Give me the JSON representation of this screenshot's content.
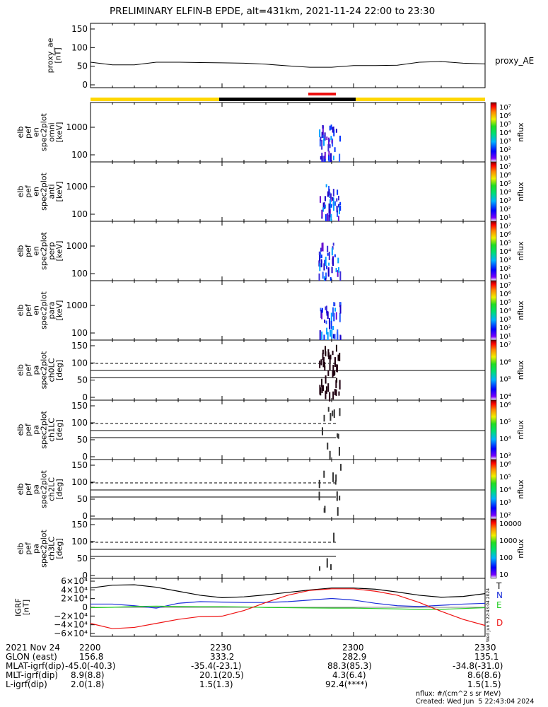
{
  "title": "PRELIMINARY ELFIN-B EPDE, alt=431km, 2021-11-24 22:00 to 23:30",
  "colors": {
    "black": "#000000",
    "yellow": "#ffd700",
    "red": "#ee1111",
    "blue": "#1c2fd9",
    "green": "#22cc22"
  },
  "panels": [
    {
      "name": "proxy-ae",
      "ylabel": [
        "proxy_ae",
        "[nT]"
      ],
      "ticks": [
        "150",
        "100",
        "50",
        "0"
      ],
      "right_label": "proxy_AE"
    },
    {
      "name": "omni",
      "ylabel": [
        "elb",
        "pef",
        "en",
        "spec2plot",
        "omni",
        "[keV]"
      ],
      "ticks": [
        "1000",
        "100"
      ],
      "colorbar_ticks": [
        "10⁷",
        "10⁶",
        "10⁵",
        "10⁴",
        "10³",
        "10²",
        "10¹"
      ],
      "colorbar_label": "nflux"
    },
    {
      "name": "anti",
      "ylabel": [
        "elb",
        "pef",
        "en",
        "spec2plot",
        "anti",
        "[keV]"
      ],
      "ticks": [
        "1000",
        "100"
      ],
      "colorbar_ticks": [
        "10⁷",
        "10⁶",
        "10⁵",
        "10⁴",
        "10³",
        "10²",
        "10¹"
      ],
      "colorbar_label": "nflux"
    },
    {
      "name": "perp",
      "ylabel": [
        "elb",
        "pef",
        "en",
        "spec2plot",
        "perp",
        "[keV]"
      ],
      "ticks": [
        "1000",
        "100"
      ],
      "colorbar_ticks": [
        "10⁷",
        "10⁶",
        "10⁵",
        "10⁴",
        "10³",
        "10²",
        "10¹"
      ],
      "colorbar_label": "nflux"
    },
    {
      "name": "para",
      "ylabel": [
        "elb",
        "pef",
        "en",
        "spec2plot",
        "para",
        "[keV]"
      ],
      "ticks": [
        "1000",
        "100"
      ],
      "colorbar_ticks": [
        "10⁷",
        "10⁶",
        "10⁵",
        "10⁴",
        "10³",
        "10²",
        "10¹"
      ],
      "colorbar_label": "nflux"
    },
    {
      "name": "ch0lc",
      "ylabel": [
        "elb",
        "pef",
        "pa",
        "spec2plot",
        "ch0LC",
        "[deg]"
      ],
      "ticks": [
        "150",
        "100",
        "50",
        "0"
      ],
      "colorbar_ticks": [
        "10⁷",
        "10⁶",
        "10⁵",
        "10⁴"
      ],
      "colorbar_label": "nflux"
    },
    {
      "name": "ch1lc",
      "ylabel": [
        "elb",
        "pef",
        "pa",
        "spec2plot",
        "ch1LC",
        "[deg]"
      ],
      "ticks": [
        "150",
        "100",
        "50",
        "0"
      ],
      "colorbar_ticks": [
        "10⁶",
        "10⁵",
        "10⁴",
        "10³"
      ],
      "colorbar_label": "nflux"
    },
    {
      "name": "ch2lc",
      "ylabel": [
        "elb",
        "pef",
        "pa",
        "spec2plot",
        "ch2LC",
        "[deg]"
      ],
      "ticks": [
        "150",
        "100",
        "50",
        "0"
      ],
      "colorbar_ticks": [
        "10⁶",
        "10⁵",
        "10⁴",
        "10³",
        "10²"
      ],
      "colorbar_label": "nflux"
    },
    {
      "name": "ch3lc",
      "ylabel": [
        "elb",
        "pef",
        "pa",
        "spec2plot",
        "ch3LC",
        "[deg]"
      ],
      "ticks": [
        "150",
        "100",
        "50",
        "0"
      ],
      "colorbar_ticks": [
        "10000",
        "1000",
        "100",
        "10"
      ],
      "colorbar_label": "nflux"
    },
    {
      "name": "igrf",
      "ylabel": [
        "IGRF",
        "[nT]"
      ],
      "ticks": [
        "6×10⁴",
        "4×10⁴",
        "2×10⁴",
        "0",
        "−2×10⁴",
        "−4×10⁴",
        "−6×10⁴"
      ],
      "legend": [
        "T",
        "N",
        "E",
        "D"
      ]
    }
  ],
  "time_axis": {
    "date": "2021 Nov 24",
    "ticks": [
      "2200",
      "2230",
      "2300",
      "2330"
    ],
    "rows": [
      {
        "label": "GLON (east)",
        "values": [
          "156.8",
          "333.2",
          "282.9",
          "135.1"
        ]
      },
      {
        "label": "MLAT-igrf(dip)",
        "values": [
          "-45.0(-40.3)",
          "-35.4(-23.1)",
          "88.3(85.3)",
          "-34.8(-31.0)"
        ]
      },
      {
        "label": "MLT-igrf(dip)",
        "values": [
          "8.9(8.8)",
          "20.1(20.5)",
          "4.3(6.4)",
          "8.6(8.6)"
        ]
      },
      {
        "label": "L-igrf(dip)",
        "values": [
          "2.0(1.8)",
          "1.5(1.3)",
          "92.4(****)",
          "1.5(1.5)"
        ]
      }
    ]
  },
  "footer": {
    "units": "nflux: #/(cm^2 s sr MeV)",
    "created": "Created: Wed Jun  5 22:43:04 2024"
  },
  "side_stamp": "Wed Jun  5 22:43:04 2024",
  "chart_data": {
    "type": "line",
    "x_range": [
      "22:00",
      "23:30"
    ],
    "series": [
      {
        "name": "proxy_AE",
        "units": "nT",
        "ylim": [
          0,
          150
        ],
        "x": [
          "22:00",
          "22:05",
          "22:10",
          "22:15",
          "22:20",
          "22:25",
          "22:30",
          "22:35",
          "22:40",
          "22:45",
          "22:50",
          "22:55",
          "23:00",
          "23:05",
          "23:10",
          "23:15",
          "23:20",
          "23:25",
          "23:30"
        ],
        "values": [
          55,
          47,
          47,
          55,
          55,
          54,
          53,
          52,
          49,
          44,
          40,
          40,
          45,
          45,
          46,
          55,
          57,
          52,
          50
        ]
      }
    ],
    "igrf": {
      "units": "nT",
      "ylim": [
        -65000.0,
        65000.0
      ],
      "x": [
        "22:00",
        "22:05",
        "22:10",
        "22:15",
        "22:20",
        "22:25",
        "22:30",
        "22:35",
        "22:40",
        "22:45",
        "22:50",
        "22:55",
        "23:00",
        "23:05",
        "23:10",
        "23:15",
        "23:20",
        "23:25",
        "23:30"
      ],
      "T": [
        48000,
        55000,
        56000,
        50000,
        40000,
        30000,
        24000,
        26000,
        31000,
        37000,
        43000,
        48000,
        48000,
        45000,
        38000,
        30000,
        25000,
        27000,
        34000
      ],
      "N": [
        8000,
        8000,
        4000,
        -2000,
        10000,
        14000,
        13000,
        12000,
        12000,
        14000,
        18000,
        22000,
        18000,
        10000,
        4000,
        2000,
        5000,
        8000,
        10000
      ],
      "E": [
        -1000,
        0,
        2000,
        3000,
        2000,
        1500,
        1500,
        1000,
        -500,
        -1000,
        -1500,
        -2000,
        -2000,
        -3000,
        -4000,
        -5000,
        -5000,
        -3000,
        -1000
      ],
      "D": [
        -40000,
        -53000,
        -50000,
        -40000,
        -30000,
        -23000,
        -22000,
        -8000,
        12000,
        30000,
        42000,
        46000,
        46000,
        40000,
        30000,
        12000,
        -10000,
        -30000,
        -45000
      ]
    },
    "spectrogram_time_range": [
      "22:52",
      "22:57"
    ],
    "colorbar": "rainbow log nflux"
  }
}
